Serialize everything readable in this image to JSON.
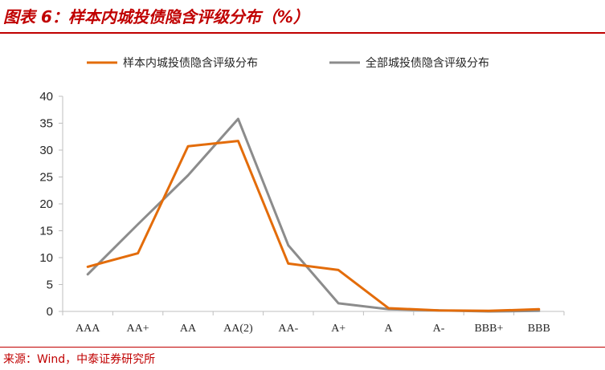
{
  "figure": {
    "title": "图表 6：样本内城投债隐含评级分布（%）",
    "source": "来源：Wind，中泰证券研究所"
  },
  "colors": {
    "accent": "#c00000",
    "series_sample": "#e36c0a",
    "series_all": "#8c8c8c",
    "axis": "#bfbfbf"
  },
  "chart_data": {
    "type": "line",
    "categories": [
      "AAA",
      "AA+",
      "AA",
      "AA(2)",
      "AA-",
      "A+",
      "A",
      "A-",
      "BBB+",
      "BBB"
    ],
    "series": [
      {
        "name": "样本内城投债隐含评级分布",
        "values": [
          8.3,
          10.8,
          30.7,
          31.7,
          8.9,
          7.7,
          0.6,
          0.2,
          0.1,
          0.4
        ]
      },
      {
        "name": "全部城投债隐含评级分布",
        "values": [
          6.9,
          16.2,
          25.3,
          35.8,
          12.3,
          1.5,
          0.4,
          0.2,
          0.0,
          0.1
        ]
      }
    ],
    "y_ticks": [
      "0",
      "5",
      "10",
      "15",
      "20",
      "25",
      "30",
      "35",
      "40"
    ],
    "ylim": [
      0,
      40
    ],
    "legend_position": "top",
    "grid": false
  }
}
